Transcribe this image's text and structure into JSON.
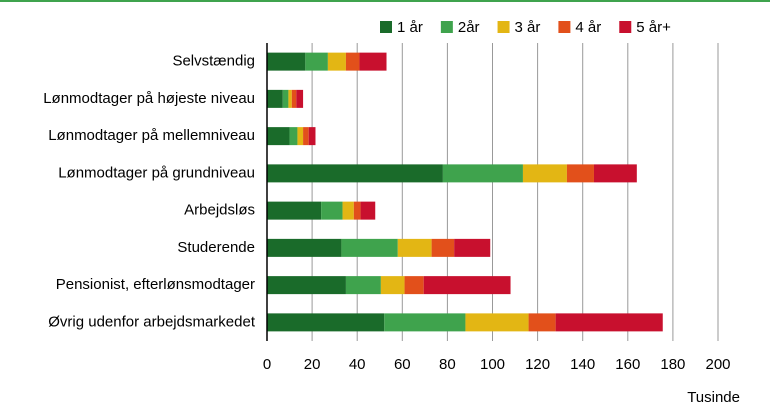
{
  "chart_data": {
    "type": "stacked_bar_horizontal",
    "categories": [
      "Selvstændig",
      "Lønmodtager på højeste niveau",
      "Lønmodtager på mellemniveau",
      "Lønmodtager på grundniveau",
      "Arbejdsløs",
      "Studerende",
      "Pensionist, efterlønsmodtager",
      "Øvrig udenfor arbejdsmarkedet"
    ],
    "series": [
      {
        "name": "1 år",
        "color": "#1a6b2a",
        "values": [
          17,
          7,
          10,
          78,
          24,
          33,
          35,
          52
        ]
      },
      {
        "name": "2år",
        "color": "#3fa34d",
        "values": [
          10,
          2.5,
          3.5,
          35.5,
          9.5,
          25,
          15.5,
          36
        ]
      },
      {
        "name": "3 år",
        "color": "#e3b614",
        "values": [
          8,
          1.5,
          2.5,
          19.5,
          5,
          15,
          10.5,
          28
        ]
      },
      {
        "name": "4 år",
        "color": "#e2501b",
        "values": [
          6,
          2,
          2.5,
          12,
          3,
          10,
          8.5,
          12
        ]
      },
      {
        "name": "5 år+",
        "color": "#c8102e",
        "values": [
          12,
          3,
          3,
          19,
          6.5,
          16,
          38.5,
          47.5
        ]
      }
    ],
    "xlabel": "Tusinde",
    "xlim": [
      0,
      200
    ],
    "xticks": [
      0,
      20,
      40,
      60,
      80,
      100,
      120,
      140,
      160,
      180,
      200
    ],
    "grid": true
  }
}
